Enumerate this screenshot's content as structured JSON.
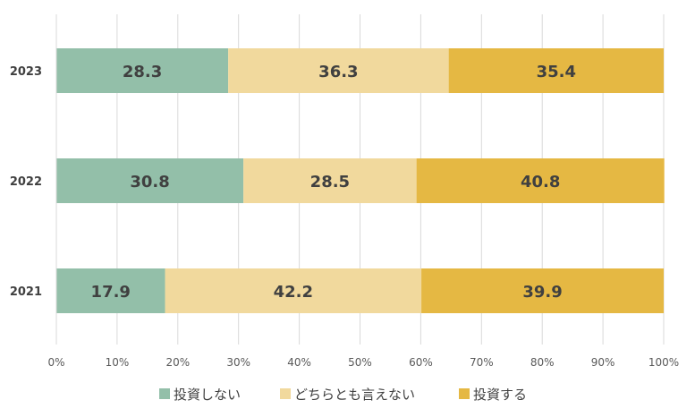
{
  "chart_data": {
    "type": "bar",
    "orientation": "horizontal",
    "stacked": true,
    "percent": true,
    "categories": [
      "2023",
      "2022",
      "2021"
    ],
    "series": [
      {
        "name": "投資しない",
        "color": "#93BFA9",
        "values": [
          28.3,
          30.8,
          17.9
        ]
      },
      {
        "name": "どちらとも言えない",
        "color": "#F1D99D",
        "values": [
          36.3,
          28.5,
          42.2
        ]
      },
      {
        "name": "投資する",
        "color": "#E5B843",
        "values": [
          35.4,
          40.8,
          39.9
        ]
      }
    ],
    "xlim": [
      0,
      100
    ],
    "xticks": [
      "0%",
      "10%",
      "20%",
      "30%",
      "40%",
      "50%",
      "60%",
      "70%",
      "80%",
      "90%",
      "100%"
    ],
    "grid": true,
    "legend_position": "bottom",
    "label_color": "#404040",
    "axis_label_color": "#595959",
    "grid_color": "#D9D9D9"
  }
}
